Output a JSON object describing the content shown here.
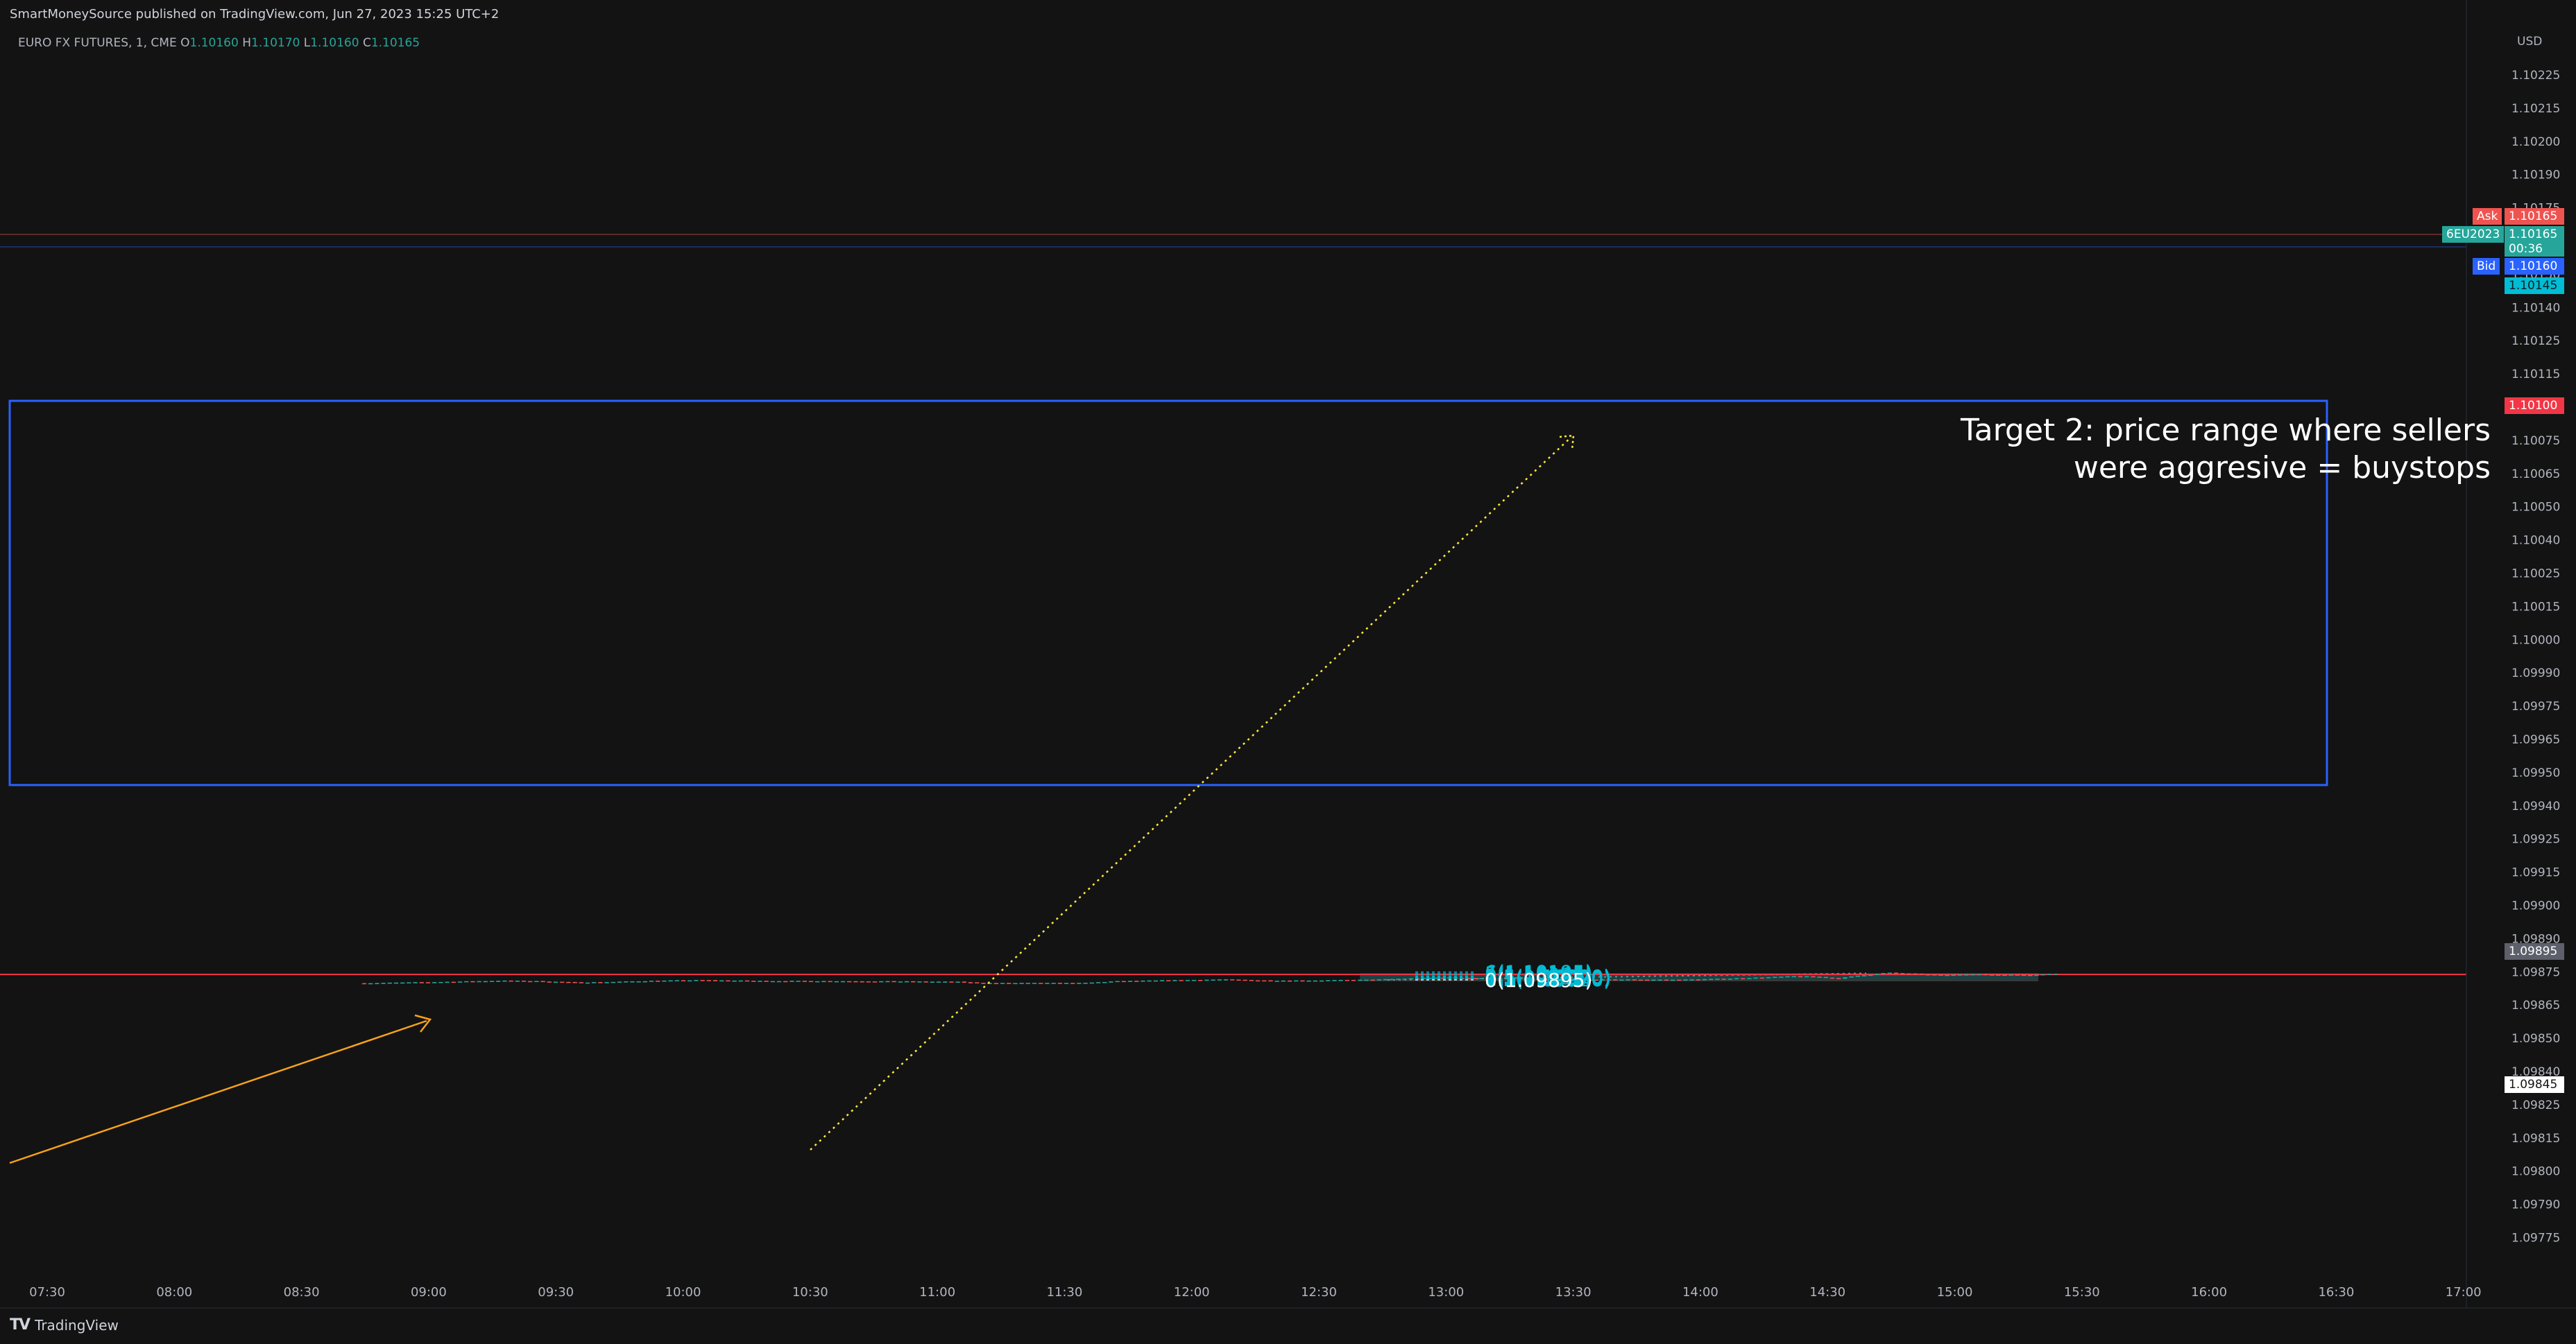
{
  "header": {
    "publisher_line": "SmartMoneySource published on TradingView.com, Jun 27, 2023 15:25 UTC+2"
  },
  "legend": {
    "symbol": "EURO FX FUTURES, 1, CME",
    "open_label": "O",
    "open": "1.10160",
    "high_label": "H",
    "high": "1.10170",
    "low_label": "L",
    "low": "1.10160",
    "close_label": "C",
    "close": "1.10165"
  },
  "axis": {
    "currency": "USD",
    "price_ticks": [
      "1.10225",
      "1.10215",
      "1.10200",
      "1.10190",
      "1.10175",
      "1.10165",
      "1.10150",
      "1.10140",
      "1.10125",
      "1.10115",
      "1.10090",
      "1.10075",
      "1.10065",
      "1.10050",
      "1.10040",
      "1.10025",
      "1.10015",
      "1.10000",
      "1.09990",
      "1.09975",
      "1.09965",
      "1.09950",
      "1.09940",
      "1.09925",
      "1.09915",
      "1.09900",
      "1.09890",
      "1.09875",
      "1.09865",
      "1.09850",
      "1.09840",
      "1.09825",
      "1.09815",
      "1.09800",
      "1.09790",
      "1.09775"
    ],
    "time_ticks": [
      "07:30",
      "08:00",
      "08:30",
      "09:00",
      "09:30",
      "10:00",
      "10:30",
      "11:00",
      "11:30",
      "12:00",
      "12:30",
      "13:00",
      "13:30",
      "14:00",
      "14:30",
      "15:00",
      "15:30",
      "16:00",
      "16:30",
      "17:00"
    ]
  },
  "price_tags": {
    "ask_label": "Ask",
    "ask": "1.10165",
    "symbol_code": "6EU2023",
    "last": "1.10165",
    "countdown": "00:36",
    "bid_label": "Bid",
    "bid": "1.10160",
    "target": "1.10145",
    "red_line": "1.10100",
    "fib_zero": "1.09895",
    "stop": "1.09845"
  },
  "fib_levels": [
    {
      "label": "6(1.10195)",
      "price": 1.10195
    },
    {
      "label": "5(1.10145)",
      "price": 1.10145
    },
    {
      "label": "4(1.10095)",
      "price": 1.10095
    },
    {
      "label": "3(1.10045)",
      "price": 1.10045
    },
    {
      "label": "2.5(1.10020)",
      "price": 1.1002
    },
    {
      "label": "2(1.09995)",
      "price": 1.09995
    },
    {
      "label": "1.5(1.09970)",
      "price": 1.0997
    },
    {
      "label": "1(1.09945)",
      "price": 1.09945
    },
    {
      "label": "0.5(1.09920)",
      "price": 1.0992
    },
    {
      "label": "0(1.09895)",
      "price": 1.09895
    }
  ],
  "annotation": {
    "line1": "Target 2: price range where sellers",
    "line2": "were aggresive = buystops"
  },
  "colors": {
    "bull": "#26a69a",
    "bear": "#ef5350",
    "target_zone": "#1d4b4d",
    "stop_zone": "#3a3a3a",
    "rectangle": "#2962ff",
    "fib": "#00bcd4",
    "orange": "#f7a21b",
    "yellow": "#ffeb3b"
  },
  "footer": {
    "brand": "TradingView"
  }
}
